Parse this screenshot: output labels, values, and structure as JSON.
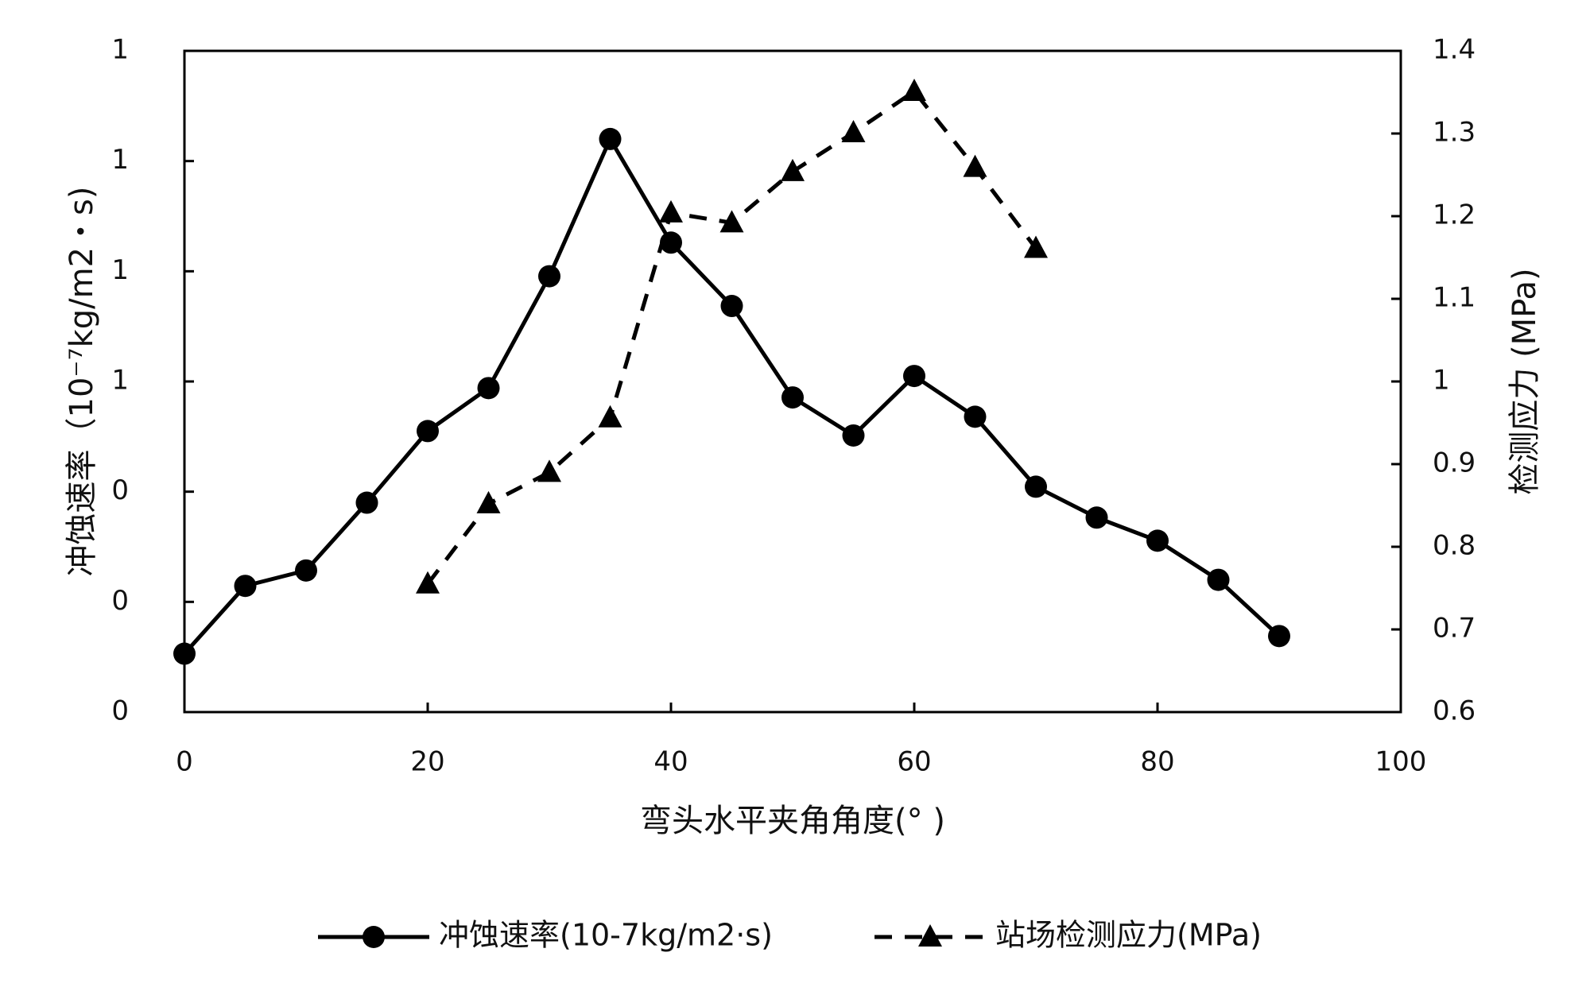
{
  "chart_data": {
    "type": "line",
    "x_label": "弯头水平夹角角度(°  )",
    "y_label": "冲蚀速率（10⁻⁷kg/m2・s)",
    "y2_label": "检测应力 (MPa)",
    "x": [
      0,
      5,
      10,
      15,
      20,
      25,
      30,
      35,
      40,
      45,
      50,
      55,
      60,
      65,
      70,
      75,
      80,
      85,
      90
    ],
    "series": [
      {
        "name": "冲蚀速率(10-7kg/m2·s)",
        "color": "#000000",
        "marker": "circle",
        "dash": false,
        "values": [
          0.106,
          0.229,
          0.257,
          0.38,
          0.51,
          0.588,
          0.791,
          1.04,
          0.852,
          0.737,
          0.571,
          0.502,
          0.61,
          0.536,
          0.409,
          0.353,
          0.311,
          0.24,
          0.138
        ]
      },
      {
        "name": "站场检测应力(MPa)",
        "color": "#000000",
        "marker": "triangle",
        "dash": true,
        "axis": "y2",
        "values": [
          null,
          null,
          null,
          null,
          0.755,
          0.852,
          0.89,
          0.956,
          1.204,
          1.192,
          1.254,
          1.301,
          1.351,
          1.259,
          1.161,
          null,
          null,
          null,
          null
        ]
      }
    ],
    "xlim": [
      0,
      100
    ],
    "xticks": [
      0,
      20,
      40,
      60,
      80,
      100
    ],
    "ylim": [
      0,
      1.2
    ],
    "yticks": [
      {
        "value": 0,
        "label": "0"
      },
      {
        "value": 0.2,
        "label": "0"
      },
      {
        "value": 0.4,
        "label": "0"
      },
      {
        "value": 0.6,
        "label": "1"
      },
      {
        "value": 0.8,
        "label": "1"
      },
      {
        "value": 1.0,
        "label": "1"
      },
      {
        "value": 1.2,
        "label": "1"
      }
    ],
    "y2lim": [
      0.6,
      1.4
    ],
    "y2ticks": [
      0.6,
      0.7,
      0.8,
      0.9,
      1,
      1.1,
      1.2,
      1.3,
      1.4
    ],
    "grid": false,
    "legend": "bottom"
  }
}
